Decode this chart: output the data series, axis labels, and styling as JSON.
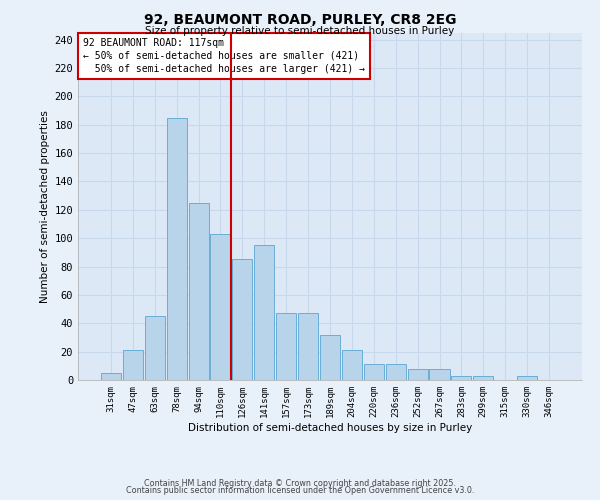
{
  "title": "92, BEAUMONT ROAD, PURLEY, CR8 2EG",
  "subtitle": "Size of property relative to semi-detached houses in Purley",
  "xlabel": "Distribution of semi-detached houses by size in Purley",
  "ylabel": "Number of semi-detached properties",
  "bar_labels": [
    "31sqm",
    "47sqm",
    "63sqm",
    "78sqm",
    "94sqm",
    "110sqm",
    "126sqm",
    "141sqm",
    "157sqm",
    "173sqm",
    "189sqm",
    "204sqm",
    "220sqm",
    "236sqm",
    "252sqm",
    "267sqm",
    "283sqm",
    "299sqm",
    "315sqm",
    "330sqm",
    "346sqm"
  ],
  "bar_values": [
    5,
    21,
    45,
    185,
    125,
    103,
    85,
    95,
    47,
    47,
    32,
    21,
    11,
    11,
    8,
    8,
    3,
    3,
    0,
    3,
    0
  ],
  "bar_color": "#b8d4ea",
  "bar_edge_color": "#6aaed6",
  "vline_x": 5.5,
  "vline_color": "#cc0000",
  "annotation_text": "92 BEAUMONT ROAD: 117sqm\n← 50% of semi-detached houses are smaller (421)\n  50% of semi-detached houses are larger (421) →",
  "annotation_box_edgecolor": "#cc0000",
  "annotation_box_facecolor": "#ffffff",
  "ylim": [
    0,
    245
  ],
  "yticks": [
    0,
    20,
    40,
    60,
    80,
    100,
    120,
    140,
    160,
    180,
    200,
    220,
    240
  ],
  "footer_line1": "Contains HM Land Registry data © Crown copyright and database right 2025.",
  "footer_line2": "Contains public sector information licensed under the Open Government Licence v3.0.",
  "bg_color": "#e8f0fa",
  "plot_bg_color": "#dce8f5",
  "grid_color": "#c8d8ec"
}
